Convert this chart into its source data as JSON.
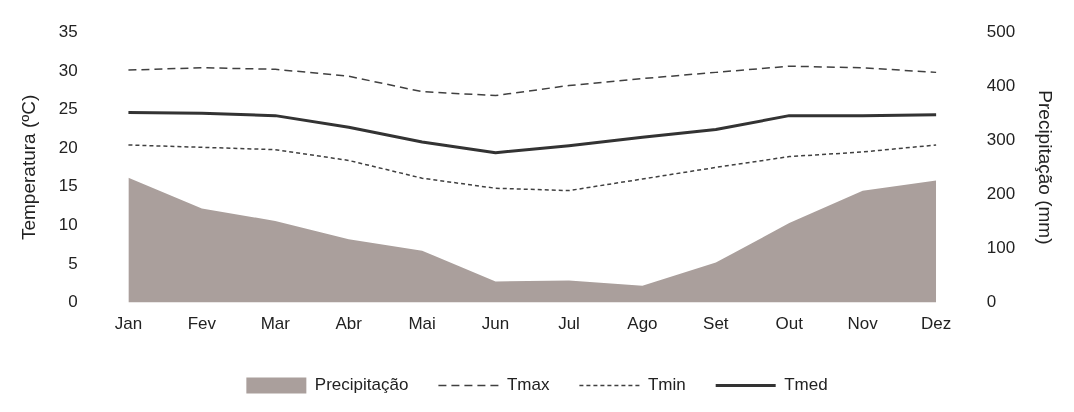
{
  "chart_data": {
    "type": "line",
    "categories": [
      "Jan",
      "Fev",
      "Mar",
      "Abr",
      "Mai",
      "Jun",
      "Jul",
      "Ago",
      "Set",
      "Out",
      "Nov",
      "Dez"
    ],
    "ylabel": "Temperatura (ºC)",
    "y2label": "Precipitação (mm)",
    "ylim": [
      0,
      35
    ],
    "yticks": [
      0,
      5,
      10,
      15,
      20,
      25,
      30,
      35
    ],
    "y2lim": [
      0,
      500
    ],
    "y2ticks": [
      0,
      100,
      200,
      300,
      400,
      500
    ],
    "grid": false,
    "legend": "bottom",
    "marker": "none",
    "series": [
      {
        "name": "Precipitação",
        "type": "area",
        "axis": "y2",
        "color": "#aa9f9c",
        "values": [
          231,
          174,
          151,
          117,
          96,
          39,
          41,
          31,
          74,
          147,
          207,
          226
        ]
      },
      {
        "name": "Tmax",
        "line_style": "dashed",
        "color": "#404040",
        "values": [
          30.1,
          30.4,
          30.2,
          29.3,
          27.3,
          26.8,
          28.1,
          29.0,
          29.8,
          30.6,
          30.4,
          29.8
        ]
      },
      {
        "name": "Tmin",
        "line_style": "dotted",
        "color": "#404040",
        "values": [
          20.4,
          20.1,
          19.8,
          18.4,
          16.1,
          14.8,
          14.5,
          16.0,
          17.5,
          18.9,
          19.5,
          20.4
        ]
      },
      {
        "name": "Tmed",
        "line_style": "solid",
        "color": "#333333",
        "values": [
          24.6,
          24.5,
          24.2,
          22.7,
          20.8,
          19.4,
          20.3,
          21.4,
          22.4,
          24.2,
          24.2,
          24.3
        ]
      }
    ]
  }
}
